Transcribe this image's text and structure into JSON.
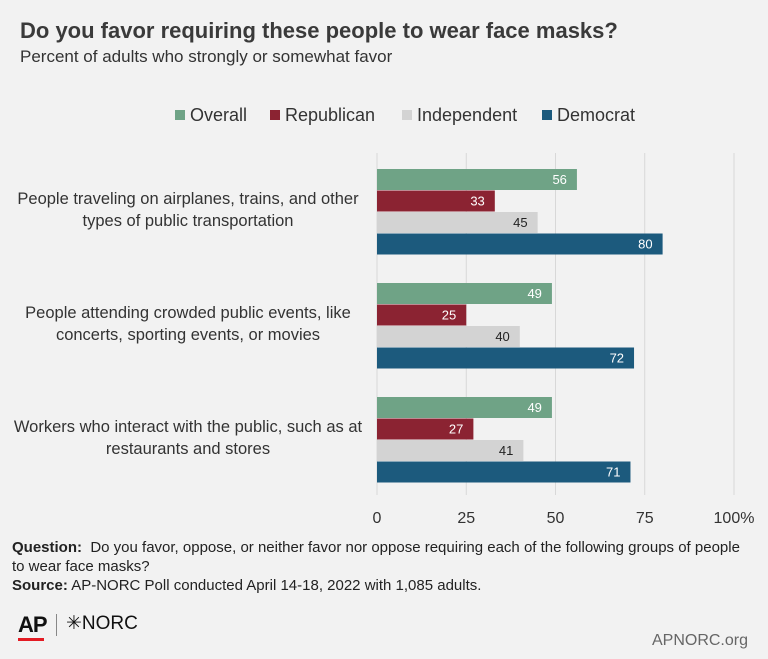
{
  "chart_data": {
    "type": "bar",
    "orientation": "horizontal",
    "title": "Do you favor requiring these people to wear face masks?",
    "subtitle": "Percent of adults who strongly or somewhat favor",
    "categories": [
      [
        "People traveling on airplanes, trains, and other",
        "types of public transportation"
      ],
      [
        "People attending crowded public events, like",
        "concerts, sporting events, or movies"
      ],
      [
        "Workers who interact with the public, such as at",
        "restaurants and stores"
      ]
    ],
    "series": [
      {
        "name": "Overall",
        "color": "#6fa386",
        "label_color": "#ffffff",
        "values": [
          56,
          49,
          49
        ]
      },
      {
        "name": "Republican",
        "color": "#8b2332",
        "label_color": "#ffffff",
        "values": [
          33,
          25,
          27
        ]
      },
      {
        "name": "Independent",
        "color": "#d3d3d3",
        "label_color": "#222222",
        "values": [
          45,
          40,
          41
        ]
      },
      {
        "name": "Democrat",
        "color": "#1c5a7d",
        "label_color": "#ffffff",
        "values": [
          80,
          72,
          71
        ]
      }
    ],
    "xlim": [
      0,
      100
    ],
    "xticks": [
      "0",
      "25",
      "50",
      "75",
      "100%"
    ],
    "grid": true,
    "legend_position": "top"
  },
  "footer": {
    "question_label": "Question:",
    "question_text": "Do you favor, oppose, or neither favor nor oppose requiring each of the following groups of people to wear face masks?",
    "source_label": "Source:",
    "source_text": "AP-NORC Poll conducted April 14-18, 2022 with 1,085 adults."
  },
  "logos": {
    "ap": "AP",
    "norc": "NORC"
  },
  "site": "APNORC.org"
}
